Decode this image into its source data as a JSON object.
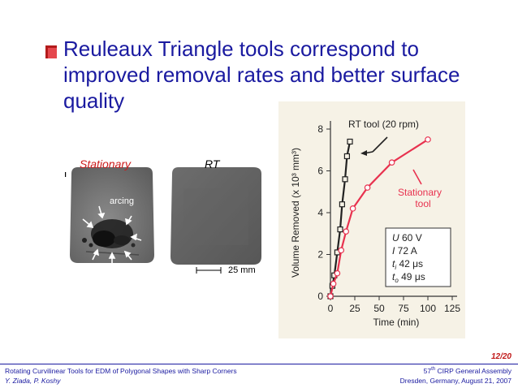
{
  "slide": {
    "title": "Reuleaux Triangle tools correspond to improved removal rates and better surface quality",
    "photos": {
      "stationary_label": "Stationary",
      "rt_label": "RT",
      "arcing_label": "arcing",
      "scale_label": "25 mm"
    },
    "page_number": "12/20"
  },
  "footer": {
    "left_line1": "Rotating Curvilinear Tools for EDM of Polygonal Shapes with Sharp Corners",
    "left_line2": "Y. Ziada, P. Koshy",
    "right_line1_pre": "57",
    "right_line1_sup": "th",
    "right_line1_post": " CIRP General Assembly",
    "right_line2": "Dresden, Germany, August 21, 2007"
  },
  "colors": {
    "title_blue": "#1a1aa0",
    "stationary_red": "#e8324f",
    "rt_black": "#222222",
    "chart_bg": "#f6f2e6"
  },
  "chart_data": {
    "type": "line",
    "xlabel": "Time (min)",
    "ylabel": "Volume Removed (x 10³ mm³)",
    "xlim": [
      0,
      125
    ],
    "ylim": [
      0,
      8
    ],
    "xticks": [
      0,
      25,
      50,
      75,
      100,
      125
    ],
    "yticks": [
      0,
      2,
      4,
      6,
      8
    ],
    "series": [
      {
        "name": "RT tool (20 rpm)",
        "marker": "square",
        "color": "#222222",
        "points": [
          [
            0,
            0
          ],
          [
            2,
            0.5
          ],
          [
            4,
            1
          ],
          [
            7,
            2.1
          ],
          [
            10,
            3.2
          ],
          [
            12,
            4.4
          ],
          [
            15,
            5.6
          ],
          [
            17,
            6.7
          ],
          [
            20,
            7.4
          ]
        ]
      },
      {
        "name": "Stationary tool",
        "marker": "circle",
        "color": "#e8324f",
        "points": [
          [
            0,
            0
          ],
          [
            3,
            0.6
          ],
          [
            7,
            1.1
          ],
          [
            11,
            2.2
          ],
          [
            16,
            3.1
          ],
          [
            23,
            4.2
          ],
          [
            38,
            5.2
          ],
          [
            63,
            6.4
          ],
          [
            100,
            7.5
          ]
        ]
      }
    ],
    "annotations": {
      "rt_label": "RT tool (20 rpm)",
      "stat_label_line1": "Stationary",
      "stat_label_line2": "tool"
    },
    "params": [
      {
        "sym": "U",
        "val": "60 V"
      },
      {
        "sym": "I",
        "val": "72 A"
      },
      {
        "sym": "t",
        "sub": "i",
        "val": "42 μs"
      },
      {
        "sym": "t",
        "sub": "o",
        "val": "49 μs"
      }
    ]
  }
}
